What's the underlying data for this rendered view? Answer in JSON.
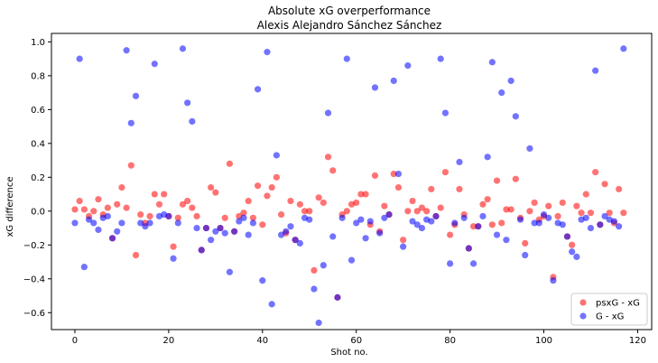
{
  "chart_data": {
    "type": "scatter",
    "title": "Absolute xG overperformance",
    "subtitle": "Alexis Alejandro Sánchez Sánchez",
    "xlabel": "Shot no.",
    "ylabel": "xG difference",
    "xlim": [
      -5,
      123
    ],
    "ylim": [
      -0.7,
      1.05
    ],
    "xticks": [
      0,
      20,
      40,
      60,
      80,
      100,
      120
    ],
    "yticks": [
      -0.6,
      -0.4,
      -0.2,
      0.0,
      0.2,
      0.4,
      0.6,
      0.8,
      1.0
    ],
    "xtick_labels": [
      "0",
      "20",
      "40",
      "60",
      "80",
      "100",
      "120"
    ],
    "ytick_labels": [
      "−0.6",
      "−0.4",
      "−0.2",
      "0.0",
      "0.2",
      "0.4",
      "0.6",
      "0.8",
      "1.0"
    ],
    "grid": false,
    "legend_position": "lower-right",
    "series": [
      {
        "name": "psxG - xG",
        "color": "#ff0000",
        "values": [
          0.01,
          0.06,
          0.01,
          -0.03,
          0.0,
          0.07,
          -0.02,
          0.02,
          -0.16,
          0.04,
          0.14,
          0.02,
          0.27,
          -0.26,
          -0.02,
          -0.07,
          -0.03,
          0.1,
          0.04,
          0.1,
          -0.03,
          -0.21,
          -0.04,
          0.04,
          0.06,
          0.02,
          -0.03,
          -0.23,
          -0.1,
          0.14,
          0.11,
          -0.1,
          -0.04,
          0.28,
          -0.12,
          -0.03,
          -0.01,
          0.06,
          -0.04,
          0.15,
          -0.08,
          0.09,
          0.14,
          0.2,
          -0.02,
          -0.13,
          0.06,
          -0.17,
          0.04,
          0.0,
          0.0,
          -0.35,
          0.08,
          0.05,
          0.32,
          0.24,
          -0.51,
          -0.02,
          0.0,
          0.04,
          0.05,
          0.1,
          0.1,
          -0.08,
          0.21,
          -0.12,
          0.03,
          -0.02,
          0.22,
          0.14,
          -0.17,
          0.0,
          0.06,
          0.0,
          0.02,
          0.0,
          0.13,
          -0.03,
          0.02,
          0.23,
          -0.14,
          -0.08,
          0.13,
          -0.02,
          -0.22,
          -0.09,
          -0.09,
          0.04,
          0.07,
          -0.08,
          0.18,
          -0.07,
          0.01,
          0.01,
          0.19,
          -0.04,
          -0.19,
          0.0,
          0.05,
          -0.05,
          -0.03,
          0.03,
          -0.39,
          -0.03,
          0.05,
          -0.15,
          -0.2,
          0.03,
          -0.01,
          0.1,
          -0.01,
          0.23,
          -0.08,
          0.16,
          -0.01,
          -0.07,
          0.13,
          -0.01
        ]
      },
      {
        "name": "G - xG",
        "color": "#0000ff",
        "values": [
          -0.07,
          0.9,
          -0.33,
          -0.05,
          -0.07,
          -0.11,
          -0.04,
          -0.03,
          -0.16,
          -0.12,
          -0.07,
          0.95,
          0.52,
          0.68,
          -0.07,
          -0.09,
          -0.07,
          0.87,
          -0.03,
          -0.02,
          -0.03,
          -0.28,
          -0.07,
          0.96,
          0.64,
          0.53,
          -0.1,
          -0.23,
          -0.1,
          -0.17,
          -0.12,
          -0.1,
          -0.13,
          -0.36,
          -0.12,
          -0.06,
          -0.04,
          -0.14,
          -0.07,
          0.72,
          -0.41,
          0.94,
          -0.55,
          0.33,
          -0.14,
          -0.12,
          -0.09,
          -0.17,
          -0.19,
          -0.04,
          -0.05,
          -0.46,
          -0.66,
          -0.32,
          0.58,
          -0.15,
          -0.51,
          -0.04,
          0.9,
          -0.29,
          -0.07,
          -0.05,
          -0.16,
          -0.06,
          0.73,
          -0.13,
          -0.04,
          -0.02,
          0.77,
          0.22,
          -0.21,
          0.86,
          -0.06,
          -0.08,
          -0.1,
          -0.05,
          -0.06,
          -0.03,
          0.9,
          0.58,
          -0.31,
          -0.07,
          0.29,
          -0.04,
          -0.22,
          -0.31,
          -0.09,
          -0.03,
          0.32,
          0.88,
          -0.14,
          0.7,
          -0.17,
          0.77,
          0.56,
          -0.05,
          -0.26,
          0.37,
          -0.07,
          -0.07,
          -0.02,
          -0.04,
          -0.41,
          -0.07,
          -0.08,
          -0.15,
          -0.24,
          -0.27,
          -0.05,
          -0.04,
          -0.1,
          0.83,
          -0.08,
          -0.03,
          -0.05,
          -0.06,
          -0.09,
          0.96
        ]
      }
    ]
  }
}
